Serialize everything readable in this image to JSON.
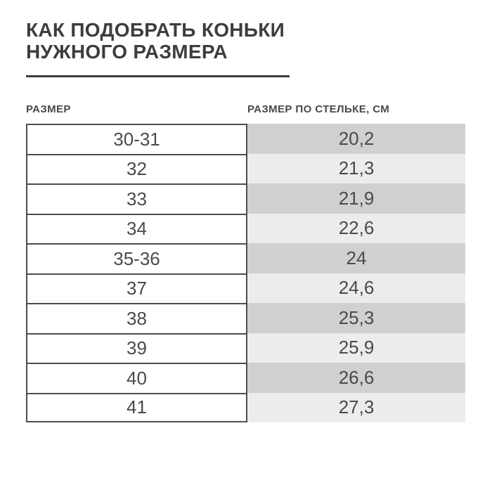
{
  "title": {
    "line1": "КАК ПОДОБРАТЬ КОНЬКИ",
    "line2": "НУЖНОГО РАЗМЕРА"
  },
  "chart_data": {
    "type": "table",
    "title": "КАК ПОДОБРАТЬ КОНЬКИ НУЖНОГО РАЗМЕРА",
    "columns": [
      "РАЗМЕР",
      "РАЗМЕР ПО СТЕЛЬКЕ, СМ"
    ],
    "rows": [
      [
        "30-31",
        "20,2"
      ],
      [
        "32",
        "21,3"
      ],
      [
        "33",
        "21,9"
      ],
      [
        "34",
        "22,6"
      ],
      [
        "35-36",
        "24"
      ],
      [
        "37",
        "24,6"
      ],
      [
        "38",
        "25,3"
      ],
      [
        "39",
        "25,9"
      ],
      [
        "40",
        "26,6"
      ],
      [
        "41",
        "27,3"
      ]
    ],
    "decimal_separator": ",",
    "layout": {
      "row_striping": "right column only, alternating dark/light starting dark",
      "left_column_style": "white cells with dark borders",
      "legend": "none",
      "grid": "horizontal row borders on left column"
    }
  },
  "colors": {
    "background": "#ffffff",
    "title_text": "#3d3d3f",
    "underline": "#3d3d3f",
    "header_text": "#48484a",
    "cell_text": "#4a4a4c",
    "cell_border": "#4d4d4d",
    "row_dark": "#d0d0d0",
    "row_light": "#ececec"
  }
}
